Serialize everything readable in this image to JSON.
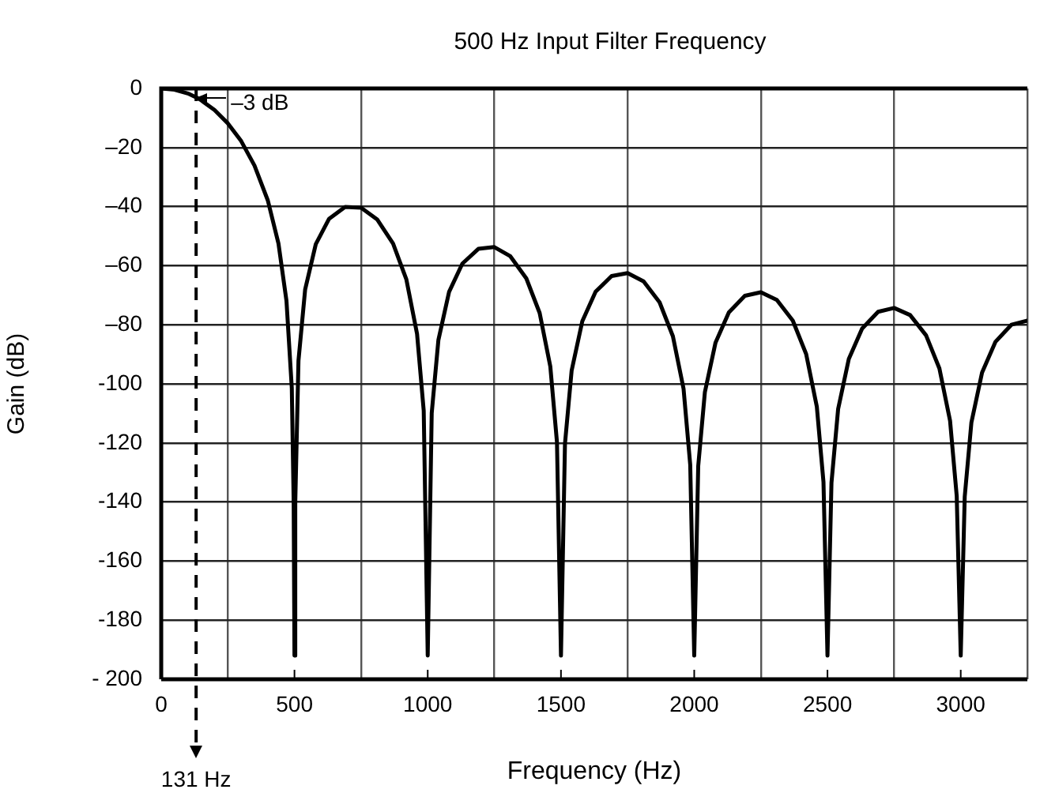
{
  "chart_data": {
    "type": "line",
    "title": "500 Hz Input Filter Frequency",
    "xlabel": "Frequency (Hz)",
    "ylabel": "Gain (dB)",
    "x": [
      0,
      50,
      100,
      131,
      150,
      200,
      250,
      300,
      350,
      400,
      440,
      470,
      490,
      497,
      500,
      503,
      515,
      540,
      580,
      630,
      690,
      750,
      810,
      870,
      920,
      960,
      985,
      1000,
      1015,
      1040,
      1080,
      1130,
      1190,
      1250,
      1310,
      1370,
      1420,
      1460,
      1485,
      1500,
      1515,
      1540,
      1580,
      1630,
      1690,
      1750,
      1810,
      1870,
      1920,
      1960,
      1985,
      2000,
      2015,
      2040,
      2080,
      2130,
      2190,
      2250,
      2310,
      2370,
      2420,
      2460,
      2485,
      2500,
      2515,
      2540,
      2580,
      2630,
      2690,
      2750,
      2810,
      2870,
      2920,
      2960,
      2985,
      3000,
      3015,
      3040,
      3080,
      3130,
      3190,
      3250
    ],
    "series": [
      {
        "color": "#000000",
        "values": [
          0,
          -0.4,
          -1.7,
          -3,
          -4,
          -7.3,
          -11.8,
          -17.8,
          -26.1,
          -37.9,
          -52.5,
          -71.9,
          -101.4,
          -140,
          -192,
          -140,
          -92.2,
          -68.1,
          -52.7,
          -44.1,
          -40.1,
          -40.4,
          -44.3,
          -52.5,
          -64.7,
          -83.1,
          -109.1,
          -192,
          -109.9,
          -85.2,
          -68.9,
          -59.3,
          -54.3,
          -53.7,
          -56.8,
          -64.3,
          -76,
          -94.1,
          -119.8,
          -192,
          -120.3,
          -95.5,
          -78.8,
          -68.8,
          -63.5,
          -62.5,
          -65.3,
          -72.4,
          -83.9,
          -101.7,
          -127.4,
          -192,
          -127.8,
          -102.8,
          -86,
          -75.8,
          -70.2,
          -69,
          -71.6,
          -78.6,
          -89.9,
          -107.7,
          -133.2,
          -192,
          -133.5,
          -108.5,
          -91.6,
          -81.3,
          -75.6,
          -74.3,
          -76.7,
          -83.6,
          -94.8,
          -112.5,
          -138,
          -192,
          -138.2,
          -113.1,
          -96.2,
          -85.8,
          -80,
          -78.6
        ]
      }
    ],
    "xlim": [
      0,
      3250
    ],
    "xticks": [
      0,
      {
        "value": 250,
        "label": null
      },
      500,
      {
        "value": 750,
        "label": null
      },
      1000,
      {
        "value": 1250,
        "label": null
      },
      1500,
      {
        "value": 1750,
        "label": null
      },
      2000,
      {
        "value": 2250,
        "label": null
      },
      2500,
      {
        "value": 2750,
        "label": null
      },
      3000,
      {
        "value": 3250,
        "label": null
      }
    ],
    "ylim": [
      -200,
      0
    ],
    "yticks": [
      0,
      {
        "value": -20,
        "label": "–20"
      },
      {
        "value": -40,
        "label": "–40"
      },
      {
        "value": -60,
        "label": "–60"
      },
      {
        "value": -80,
        "label": "–80"
      },
      -100,
      -120,
      -140,
      -160,
      -180,
      {
        "value": -200,
        "label": "- 200"
      }
    ],
    "grid": true,
    "legend": false,
    "marker": "none",
    "line_style": "solid",
    "ref_lines": [
      {
        "axis": "x",
        "value": 131,
        "label": "131 Hz",
        "line_style": "dashed",
        "color": "#000000"
      }
    ],
    "annotations": [
      {
        "text": "–3 dB",
        "x": 131,
        "y": -3
      }
    ]
  }
}
